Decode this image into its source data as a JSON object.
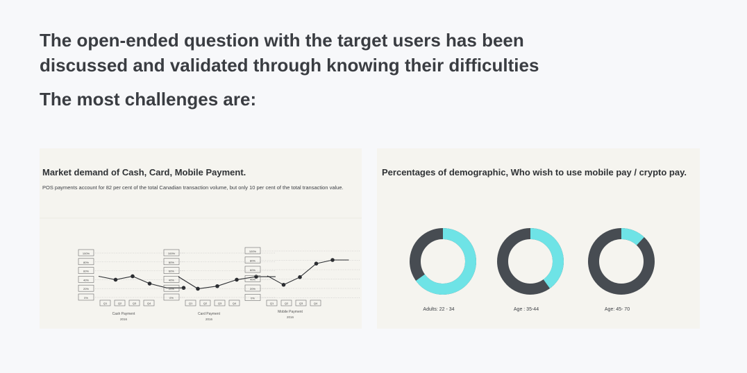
{
  "heading": {
    "line1": "The open-ended question with the target users has been",
    "line2": "discussed and validated through knowing their difficulties",
    "subheading": "The most challenges are:"
  },
  "left_panel": {
    "title": "Market demand of Cash, Card, Mobile Payment.",
    "description": "POS payments account for 82 per cent of the total Canadian transaction volume, but only 10 per cent of the total transaction value."
  },
  "right_panel": {
    "title": "Percentages of demographic, Who wish to use mobile pay / crypto pay."
  },
  "colors": {
    "line": "#2b2d31",
    "donut_fill": "#6ee3e6",
    "donut_track": "#474c52",
    "box_stroke": "#6b6b6b"
  },
  "chart_data": [
    {
      "type": "line",
      "title": "Cash Payment",
      "subtitle": "2016",
      "categories": [
        "Q1",
        "Q2",
        "Q3",
        "Q4"
      ],
      "y_tick_labels": [
        "100%",
        "80%",
        "60%",
        "40%",
        "20%",
        "0%"
      ],
      "ylim": [
        0,
        100
      ],
      "x": [
        0,
        1,
        2,
        3,
        4,
        5
      ],
      "values": [
        46,
        38,
        46,
        29,
        19,
        19
      ],
      "markers": [
        false,
        true,
        true,
        true,
        false,
        true
      ]
    },
    {
      "type": "line",
      "title": "Card Payment",
      "subtitle": "2016",
      "categories": [
        "Q1",
        "Q2",
        "Q3",
        "Q4"
      ],
      "y_tick_labels": [
        "100%",
        "80%",
        "60%",
        "40%",
        "20%",
        "0%"
      ],
      "ylim": [
        0,
        100
      ],
      "x": [
        0,
        1,
        2,
        3,
        4,
        5
      ],
      "values": [
        45,
        17,
        23,
        38,
        45,
        45
      ],
      "markers": [
        false,
        true,
        true,
        true,
        true,
        false
      ]
    },
    {
      "type": "line",
      "title": "Mobile Payment",
      "subtitle": "2016",
      "categories": [
        "Q1",
        "Q2",
        "Q3",
        "Q4"
      ],
      "y_tick_labels": [
        "100%",
        "80%",
        "60%",
        "40%",
        "20%",
        "0%"
      ],
      "ylim": [
        0,
        100
      ],
      "x": [
        0,
        1,
        2,
        3,
        4,
        5
      ],
      "values": [
        45,
        25,
        42,
        72,
        80,
        80
      ],
      "markers": [
        false,
        true,
        true,
        true,
        true,
        false
      ]
    },
    {
      "type": "pie",
      "style": "donut",
      "label": "Adults: 22 - 34",
      "value": 0.65
    },
    {
      "type": "pie",
      "style": "donut",
      "label": "Age : 35-44",
      "value": 0.4
    },
    {
      "type": "pie",
      "style": "donut",
      "label": "Age: 45- 70",
      "value": 0.12
    }
  ]
}
